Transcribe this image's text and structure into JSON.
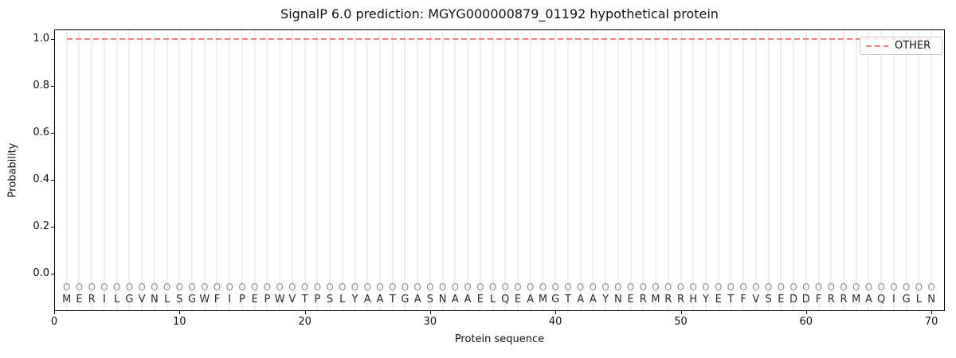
{
  "chart_data": {
    "type": "line",
    "title": "SignalP 6.0 prediction: MGYG000000879_01192 hypothetical protein",
    "xlabel": "Protein sequence",
    "ylabel": "Probability",
    "xlim": [
      0,
      71.2
    ],
    "ylim": [
      -0.156,
      1.038
    ],
    "xticks": [
      0,
      10,
      20,
      30,
      40,
      50,
      60,
      70
    ],
    "yticks": [
      0.0,
      0.2,
      0.4,
      0.6,
      0.8,
      1.0
    ],
    "grid": "vertical gridline at every residue position 1-70",
    "legend": {
      "label": "OTHER",
      "position": "upper right",
      "line_style": "dashed"
    },
    "series": [
      {
        "name": "OTHER",
        "style": "dashed",
        "color": "#f08080",
        "x": [
          1,
          2,
          3,
          4,
          5,
          6,
          7,
          8,
          9,
          10,
          11,
          12,
          13,
          14,
          15,
          16,
          17,
          18,
          19,
          20,
          21,
          22,
          23,
          24,
          25,
          26,
          27,
          28,
          29,
          30,
          31,
          32,
          33,
          34,
          35,
          36,
          37,
          38,
          39,
          40,
          41,
          42,
          43,
          44,
          45,
          46,
          47,
          48,
          49,
          50,
          51,
          52,
          53,
          54,
          55,
          56,
          57,
          58,
          59,
          60,
          61,
          62,
          63,
          64,
          65,
          66,
          67,
          68,
          69,
          70
        ],
        "values": [
          1.0,
          1.0,
          1.0,
          1.0,
          1.0,
          1.0,
          1.0,
          1.0,
          1.0,
          1.0,
          1.0,
          1.0,
          1.0,
          1.0,
          1.0,
          1.0,
          1.0,
          1.0,
          1.0,
          1.0,
          1.0,
          1.0,
          1.0,
          1.0,
          1.0,
          1.0,
          1.0,
          1.0,
          1.0,
          1.0,
          1.0,
          1.0,
          1.0,
          1.0,
          1.0,
          1.0,
          1.0,
          1.0,
          1.0,
          1.0,
          1.0,
          1.0,
          1.0,
          1.0,
          1.0,
          1.0,
          1.0,
          1.0,
          1.0,
          1.0,
          1.0,
          1.0,
          1.0,
          1.0,
          1.0,
          1.0,
          1.0,
          1.0,
          1.0,
          1.0,
          1.0,
          1.0,
          1.0,
          1.0,
          1.0,
          1.0,
          1.0,
          1.0,
          1.0,
          1.0
        ]
      }
    ],
    "sequence": "MERILGVNLSGWFIPEPWVTPSLYAATGASNAAELQEAMGTAAYNERMRRHYETFVSEDDFRRMAQIGLN",
    "marker_char": "O",
    "colors": {
      "line": "#f08080",
      "grid": "#f0f0f0",
      "marker": "#909090",
      "residue_text": "#2b2b2b",
      "spine": "#000000"
    }
  }
}
